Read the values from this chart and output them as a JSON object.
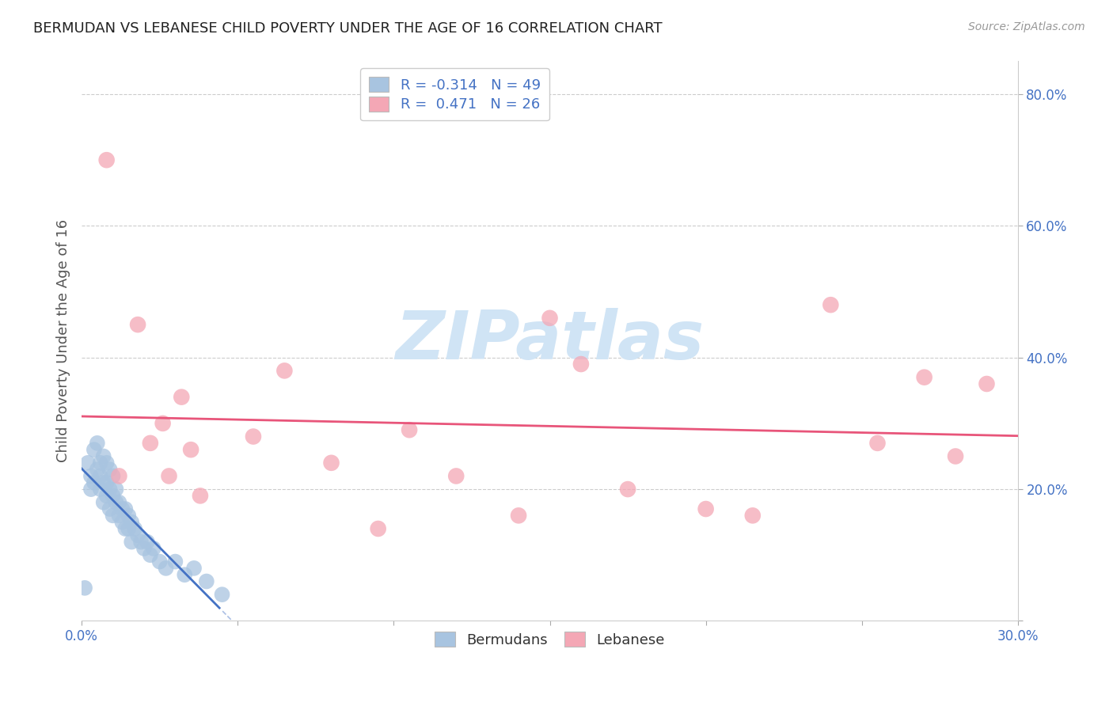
{
  "title": "BERMUDAN VS LEBANESE CHILD POVERTY UNDER THE AGE OF 16 CORRELATION CHART",
  "source": "Source: ZipAtlas.com",
  "ylabel": "Child Poverty Under the Age of 16",
  "xlim": [
    0.0,
    0.3
  ],
  "ylim": [
    0.0,
    0.85
  ],
  "xticks": [
    0.0,
    0.05,
    0.1,
    0.15,
    0.2,
    0.25,
    0.3
  ],
  "yticks": [
    0.0,
    0.2,
    0.4,
    0.6,
    0.8
  ],
  "ytick_labels": [
    "",
    "20.0%",
    "40.0%",
    "60.0%",
    "80.0%"
  ],
  "xtick_labels": [
    "0.0%",
    "",
    "",
    "",
    "",
    "",
    "30.0%"
  ],
  "bermudan_color": "#a8c4e0",
  "lebanese_color": "#f4a7b5",
  "bermudan_line_color": "#4472c4",
  "lebanese_line_color": "#e8557a",
  "watermark_text": "ZIPatlas",
  "watermark_color": "#d0e4f5",
  "bermudan_x": [
    0.001,
    0.002,
    0.003,
    0.003,
    0.004,
    0.004,
    0.005,
    0.005,
    0.006,
    0.006,
    0.006,
    0.007,
    0.007,
    0.007,
    0.008,
    0.008,
    0.008,
    0.009,
    0.009,
    0.009,
    0.01,
    0.01,
    0.01,
    0.011,
    0.011,
    0.012,
    0.012,
    0.013,
    0.013,
    0.014,
    0.014,
    0.015,
    0.015,
    0.016,
    0.016,
    0.017,
    0.018,
    0.019,
    0.02,
    0.021,
    0.022,
    0.023,
    0.025,
    0.027,
    0.03,
    0.033,
    0.036,
    0.04,
    0.045
  ],
  "bermudan_y": [
    0.05,
    0.24,
    0.22,
    0.2,
    0.26,
    0.21,
    0.27,
    0.23,
    0.24,
    0.22,
    0.2,
    0.25,
    0.21,
    0.18,
    0.24,
    0.21,
    0.19,
    0.23,
    0.2,
    0.17,
    0.22,
    0.19,
    0.16,
    0.2,
    0.18,
    0.18,
    0.16,
    0.17,
    0.15,
    0.17,
    0.14,
    0.16,
    0.14,
    0.15,
    0.12,
    0.14,
    0.13,
    0.12,
    0.11,
    0.12,
    0.1,
    0.11,
    0.09,
    0.08,
    0.09,
    0.07,
    0.08,
    0.06,
    0.04
  ],
  "lebanese_x": [
    0.008,
    0.012,
    0.018,
    0.022,
    0.026,
    0.028,
    0.032,
    0.035,
    0.038,
    0.055,
    0.065,
    0.08,
    0.095,
    0.105,
    0.12,
    0.14,
    0.15,
    0.16,
    0.175,
    0.2,
    0.215,
    0.24,
    0.255,
    0.27,
    0.28,
    0.29
  ],
  "lebanese_y": [
    0.7,
    0.22,
    0.45,
    0.27,
    0.3,
    0.22,
    0.34,
    0.26,
    0.19,
    0.28,
    0.38,
    0.24,
    0.14,
    0.29,
    0.22,
    0.16,
    0.46,
    0.39,
    0.2,
    0.17,
    0.16,
    0.48,
    0.27,
    0.37,
    0.25,
    0.36
  ],
  "bermudan_r": -0.314,
  "bermudan_n": 49,
  "lebanese_r": 0.471,
  "lebanese_n": 26
}
